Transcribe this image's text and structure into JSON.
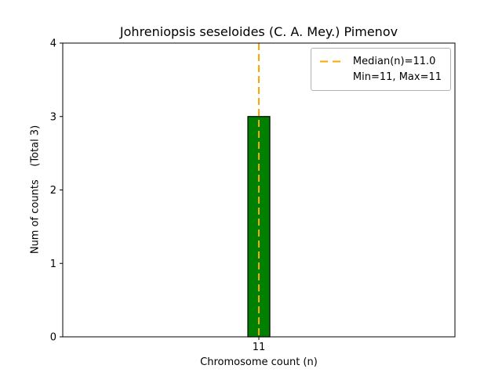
{
  "chart_data": {
    "type": "bar",
    "title": "Johreniopsis seseloides (C. A. Mey.) Pimenov",
    "xlabel": "Chromosome count (n)",
    "ylabel": "Num of counts    (Total 3)",
    "categories": [
      "11"
    ],
    "values": [
      3
    ],
    "ylim": [
      0,
      4
    ],
    "yticks": [
      0,
      1,
      2,
      3,
      4
    ],
    "total_counts": 3,
    "median": 11.0,
    "min": 11,
    "max": 11,
    "bar_color": "#008000",
    "bar_edge_color": "#000000",
    "median_line_color": "#ffa500",
    "legend_entries": [
      "Median(n)=11.0",
      "Min=11, Max=11"
    ],
    "legend_position": "upper right",
    "grid": false
  }
}
